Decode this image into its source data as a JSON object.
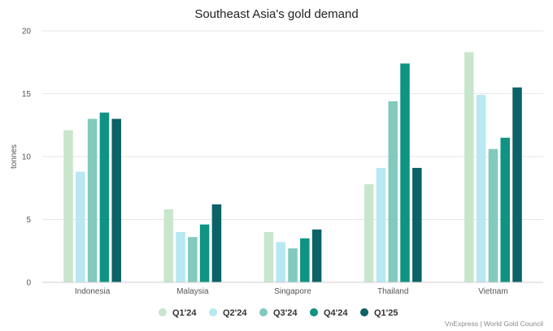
{
  "chart_data": {
    "type": "bar",
    "title": "Southeast Asia's gold demand",
    "xlabel": "",
    "ylabel": "tonnes",
    "ylim": [
      0,
      20
    ],
    "yticks": [
      0,
      5,
      10,
      15,
      20
    ],
    "grid": true,
    "legend_position": "bottom",
    "categories": [
      "Indonesia",
      "Malaysia",
      "Singapore",
      "Thailand",
      "Vietnam"
    ],
    "series": [
      {
        "name": "Q1'24",
        "color": "#c8e6cc",
        "values": [
          12.1,
          5.8,
          4.0,
          7.8,
          18.3
        ]
      },
      {
        "name": "Q2'24",
        "color": "#b8e8f2",
        "values": [
          8.8,
          4.0,
          3.2,
          9.1,
          14.9
        ]
      },
      {
        "name": "Q3'24",
        "color": "#82c9be",
        "values": [
          13.0,
          3.6,
          2.7,
          14.4,
          10.6
        ]
      },
      {
        "name": "Q4'24",
        "color": "#0f9383",
        "values": [
          13.5,
          4.6,
          3.5,
          17.4,
          11.5
        ]
      },
      {
        "name": "Q1'25",
        "color": "#0b6267",
        "values": [
          13.0,
          6.2,
          4.2,
          9.1,
          15.5
        ]
      }
    ],
    "source": "VnExpress | World Gold Council"
  }
}
